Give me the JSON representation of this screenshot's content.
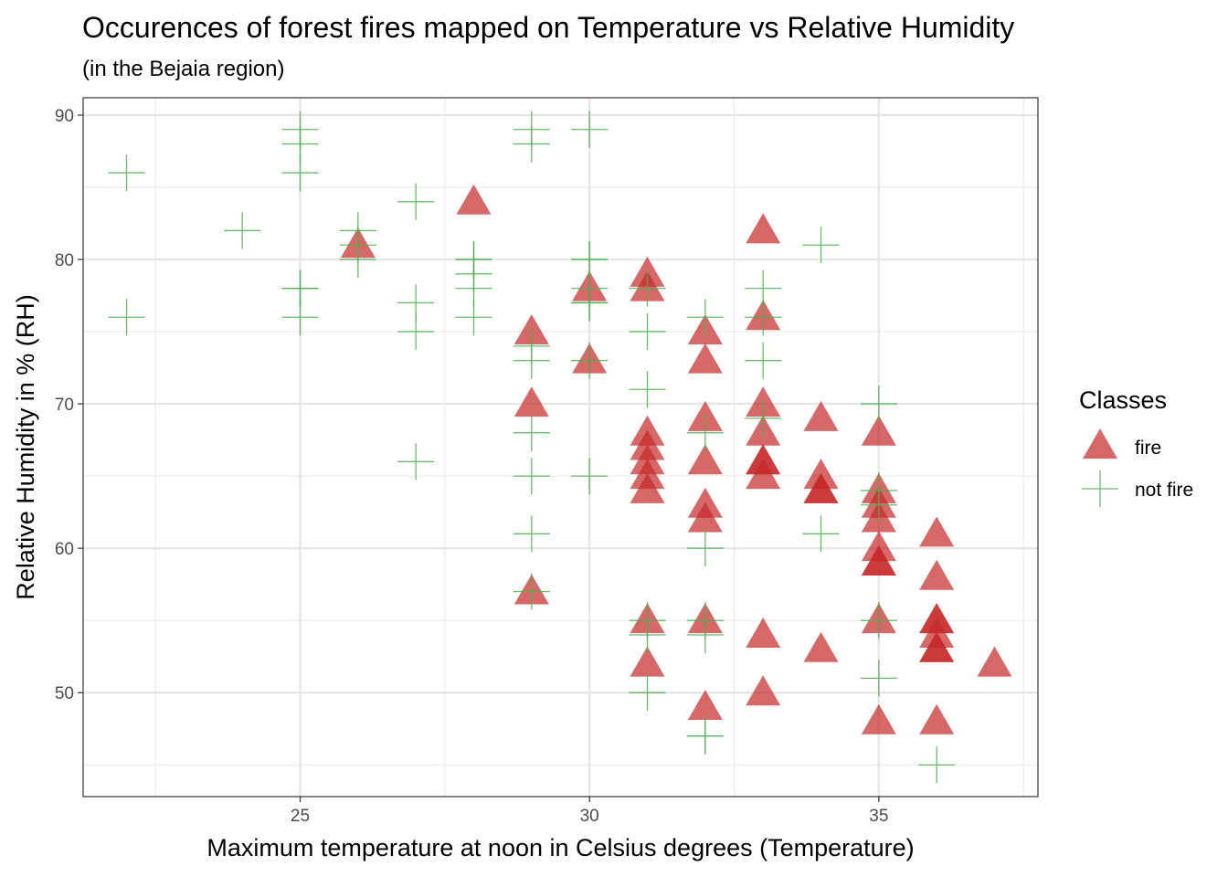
{
  "chart_data": {
    "type": "scatter",
    "title": "Occurences of forest fires mapped on Temperature vs Relative Humidity",
    "subtitle": "(in the Bejaia region)",
    "xlabel": "Maximum temperature at noon in Celsius degrees (Temperature)",
    "ylabel": "Relative Humidity in % (RH)",
    "xlim": [
      21.25,
      37.75
    ],
    "ylim": [
      42.8,
      91.2
    ],
    "x_ticks": [
      25,
      30,
      35
    ],
    "y_ticks": [
      50,
      60,
      70,
      80,
      90
    ],
    "x_tick_labels": [
      "25",
      "30",
      "35"
    ],
    "y_tick_labels": [
      "50",
      "60",
      "70",
      "80",
      "90"
    ],
    "grid": true,
    "legend_position": "right",
    "legend_title": "Classes",
    "series": [
      {
        "name": "fire",
        "marker": "triangle",
        "color": "#c62828",
        "points": [
          [
            26,
            81
          ],
          [
            28,
            84
          ],
          [
            29,
            75
          ],
          [
            29,
            70
          ],
          [
            29,
            57
          ],
          [
            30,
            78
          ],
          [
            30,
            73
          ],
          [
            31,
            79
          ],
          [
            31,
            78
          ],
          [
            31,
            68
          ],
          [
            31,
            67
          ],
          [
            31,
            66
          ],
          [
            31,
            65
          ],
          [
            31,
            64
          ],
          [
            31,
            55
          ],
          [
            31,
            52
          ],
          [
            32,
            75
          ],
          [
            32,
            73
          ],
          [
            32,
            69
          ],
          [
            32,
            66
          ],
          [
            32,
            63
          ],
          [
            32,
            62
          ],
          [
            32,
            55
          ],
          [
            32,
            49
          ],
          [
            33,
            82
          ],
          [
            33,
            76
          ],
          [
            33,
            70
          ],
          [
            33,
            68
          ],
          [
            33,
            66
          ],
          [
            33,
            66
          ],
          [
            33,
            65
          ],
          [
            33,
            54
          ],
          [
            33,
            50
          ],
          [
            34,
            69
          ],
          [
            34,
            65
          ],
          [
            34,
            64
          ],
          [
            34,
            64
          ],
          [
            34,
            53
          ],
          [
            35,
            68
          ],
          [
            35,
            64
          ],
          [
            35,
            63
          ],
          [
            35,
            62
          ],
          [
            35,
            60
          ],
          [
            35,
            59
          ],
          [
            35,
            59
          ],
          [
            35,
            55
          ],
          [
            35,
            48
          ],
          [
            36,
            61
          ],
          [
            36,
            58
          ],
          [
            36,
            55
          ],
          [
            36,
            55
          ],
          [
            36,
            54
          ],
          [
            36,
            53
          ],
          [
            36,
            53
          ],
          [
            36,
            48
          ],
          [
            37,
            52
          ]
        ]
      },
      {
        "name": "not fire",
        "marker": "cross",
        "color": "#4caf50",
        "points": [
          [
            22,
            86
          ],
          [
            22,
            76
          ],
          [
            24,
            82
          ],
          [
            25,
            89
          ],
          [
            25,
            88
          ],
          [
            25,
            86
          ],
          [
            25,
            78
          ],
          [
            25,
            78
          ],
          [
            25,
            76
          ],
          [
            26,
            82
          ],
          [
            26,
            81
          ],
          [
            26,
            80
          ],
          [
            27,
            84
          ],
          [
            27,
            77
          ],
          [
            27,
            75
          ],
          [
            27,
            66
          ],
          [
            28,
            80
          ],
          [
            28,
            80
          ],
          [
            28,
            79
          ],
          [
            28,
            78
          ],
          [
            28,
            76
          ],
          [
            29,
            89
          ],
          [
            29,
            88
          ],
          [
            29,
            74
          ],
          [
            29,
            73
          ],
          [
            29,
            68
          ],
          [
            29,
            65
          ],
          [
            29,
            61
          ],
          [
            29,
            57
          ],
          [
            30,
            89
          ],
          [
            30,
            80
          ],
          [
            30,
            80
          ],
          [
            30,
            78
          ],
          [
            30,
            77
          ],
          [
            30,
            77
          ],
          [
            30,
            73
          ],
          [
            30,
            65
          ],
          [
            31,
            78
          ],
          [
            31,
            75
          ],
          [
            31,
            71
          ],
          [
            31,
            55
          ],
          [
            31,
            54
          ],
          [
            31,
            50
          ],
          [
            32,
            76
          ],
          [
            32,
            68
          ],
          [
            32,
            60
          ],
          [
            32,
            55
          ],
          [
            32,
            54
          ],
          [
            32,
            47
          ],
          [
            32,
            47
          ],
          [
            33,
            78
          ],
          [
            33,
            76
          ],
          [
            33,
            73
          ],
          [
            33,
            69
          ],
          [
            34,
            81
          ],
          [
            34,
            61
          ],
          [
            35,
            70
          ],
          [
            35,
            64
          ],
          [
            35,
            63
          ],
          [
            35,
            55
          ],
          [
            35,
            51
          ],
          [
            36,
            45
          ]
        ]
      }
    ]
  }
}
